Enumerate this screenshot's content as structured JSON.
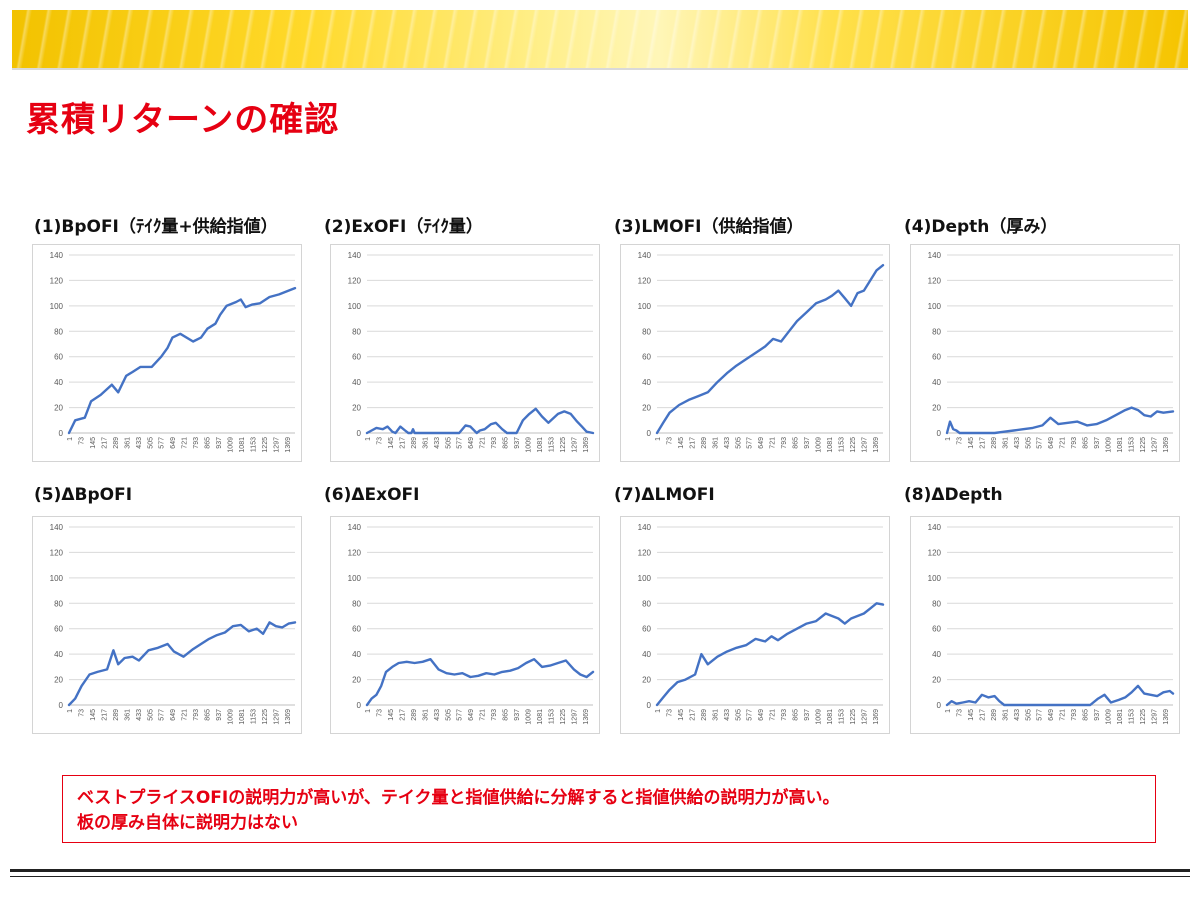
{
  "page": {
    "title": "累積リターンの確認",
    "note_line1": "ベストプライスOFIの説明力が高いが、テイク量と指値供給に分解すると指値供給の説明力が高い。",
    "note_line2": "板の厚み自体に説明力はない"
  },
  "colors": {
    "series": "#4472c4",
    "title": "#e60012",
    "grid": "#d9d9d9"
  },
  "chart_data": [
    {
      "type": "line",
      "title": "(1)BpOFI（ﾃｲｸ量+供給指値）",
      "ylim": [
        0,
        140
      ],
      "yticks": [
        0,
        20,
        40,
        60,
        80,
        100,
        120,
        140
      ],
      "x_ticks": [
        "1",
        "73",
        "145",
        "217",
        "289",
        "361",
        "433",
        "505",
        "577",
        "649",
        "721",
        "793",
        "865",
        "937",
        "1009",
        "1081",
        "1153",
        "1225",
        "1297",
        "1369"
      ],
      "x_range": [
        1,
        1420
      ],
      "series": [
        {
          "x": [
            1,
            40,
            100,
            140,
            200,
            270,
            310,
            360,
            400,
            450,
            520,
            580,
            620,
            650,
            700,
            780,
            830,
            870,
            920,
            950,
            990,
            1050,
            1080,
            1110,
            1150,
            1200,
            1260,
            1320,
            1380,
            1420
          ],
          "values": [
            0,
            10,
            12,
            25,
            30,
            38,
            32,
            45,
            48,
            52,
            52,
            60,
            67,
            75,
            78,
            72,
            75,
            82,
            86,
            93,
            100,
            103,
            105,
            99,
            101,
            102,
            107,
            109,
            112,
            114
          ]
        }
      ]
    },
    {
      "type": "line",
      "title": "(2)ExOFI（ﾃｲｸ量）",
      "ylim": [
        0,
        140
      ],
      "yticks": [
        0,
        20,
        40,
        60,
        80,
        100,
        120,
        140
      ],
      "x_ticks": [
        "1",
        "73",
        "145",
        "217",
        "289",
        "361",
        "433",
        "505",
        "577",
        "649",
        "721",
        "793",
        "865",
        "937",
        "1009",
        "1081",
        "1153",
        "1225",
        "1297",
        "1369"
      ],
      "x_range": [
        1,
        1420
      ],
      "series": [
        {
          "x": [
            1,
            30,
            60,
            100,
            130,
            160,
            180,
            210,
            240,
            260,
            280,
            290,
            300,
            330,
            400,
            580,
            620,
            650,
            690,
            710,
            740,
            780,
            810,
            850,
            880,
            940,
            980,
            1020,
            1060,
            1100,
            1140,
            1200,
            1240,
            1280,
            1320,
            1350,
            1380,
            1420
          ],
          "values": [
            0,
            2,
            4,
            3,
            5,
            1,
            0,
            5,
            2,
            0,
            0,
            3,
            0,
            0,
            0,
            0,
            6,
            5,
            0,
            2,
            3,
            7,
            8,
            3,
            0,
            0,
            10,
            15,
            19,
            13,
            8,
            15,
            17,
            15,
            9,
            5,
            1,
            0
          ]
        }
      ]
    },
    {
      "type": "line",
      "title": "(3)LMOFI（供給指値）",
      "ylim": [
        0,
        140
      ],
      "yticks": [
        0,
        20,
        40,
        60,
        80,
        100,
        120,
        140
      ],
      "x_ticks": [
        "1",
        "73",
        "145",
        "217",
        "289",
        "361",
        "433",
        "505",
        "577",
        "649",
        "721",
        "793",
        "865",
        "937",
        "1009",
        "1081",
        "1153",
        "1225",
        "1297",
        "1369"
      ],
      "x_range": [
        1,
        1420
      ],
      "series": [
        {
          "x": [
            1,
            40,
            80,
            140,
            200,
            260,
            320,
            380,
            440,
            500,
            560,
            620,
            680,
            730,
            780,
            830,
            880,
            940,
            1000,
            1060,
            1100,
            1140,
            1180,
            1220,
            1260,
            1300,
            1340,
            1380,
            1420
          ],
          "values": [
            0,
            8,
            16,
            22,
            26,
            29,
            32,
            40,
            47,
            53,
            58,
            63,
            68,
            74,
            72,
            80,
            88,
            95,
            102,
            105,
            108,
            112,
            106,
            100,
            110,
            112,
            120,
            128,
            132
          ]
        }
      ]
    },
    {
      "type": "line",
      "title": "(4)Depth（厚み）",
      "ylim": [
        0,
        140
      ],
      "yticks": [
        0,
        20,
        40,
        60,
        80,
        100,
        120,
        140
      ],
      "x_ticks": [
        "1",
        "73",
        "145",
        "217",
        "289",
        "361",
        "433",
        "505",
        "577",
        "649",
        "721",
        "793",
        "865",
        "937",
        "1009",
        "1081",
        "1153",
        "1225",
        "1297",
        "1369"
      ],
      "x_range": [
        1,
        1420
      ],
      "series": [
        {
          "x": [
            1,
            20,
            40,
            60,
            80,
            100,
            140,
            300,
            360,
            420,
            480,
            540,
            600,
            650,
            700,
            760,
            820,
            880,
            940,
            1000,
            1060,
            1120,
            1160,
            1200,
            1240,
            1280,
            1320,
            1360,
            1420
          ],
          "values": [
            0,
            9,
            3,
            2,
            0,
            0,
            0,
            0,
            1,
            2,
            3,
            4,
            6,
            12,
            7,
            8,
            9,
            6,
            7,
            10,
            14,
            18,
            20,
            18,
            14,
            13,
            17,
            16,
            17
          ]
        }
      ]
    },
    {
      "type": "line",
      "title": "(5)ΔBpOFI",
      "ylim": [
        0,
        140
      ],
      "yticks": [
        0,
        20,
        40,
        60,
        80,
        100,
        120,
        140
      ],
      "x_ticks": [
        "1",
        "73",
        "145",
        "217",
        "289",
        "361",
        "433",
        "505",
        "577",
        "649",
        "721",
        "793",
        "865",
        "937",
        "1009",
        "1081",
        "1153",
        "1225",
        "1297",
        "1369"
      ],
      "x_range": [
        1,
        1420
      ],
      "series": [
        {
          "x": [
            1,
            40,
            80,
            130,
            180,
            240,
            280,
            310,
            350,
            400,
            440,
            500,
            560,
            620,
            660,
            720,
            780,
            830,
            880,
            930,
            980,
            1030,
            1080,
            1130,
            1180,
            1220,
            1260,
            1300,
            1340,
            1380,
            1420
          ],
          "values": [
            0,
            5,
            15,
            24,
            26,
            28,
            43,
            32,
            37,
            38,
            35,
            43,
            45,
            48,
            42,
            38,
            44,
            48,
            52,
            55,
            57,
            62,
            63,
            58,
            60,
            56,
            65,
            62,
            61,
            64,
            65
          ]
        }
      ]
    },
    {
      "type": "line",
      "title": "(6)ΔExOFI",
      "ylim": [
        0,
        140
      ],
      "yticks": [
        0,
        20,
        40,
        60,
        80,
        100,
        120,
        140
      ],
      "x_ticks": [
        "1",
        "73",
        "145",
        "217",
        "289",
        "361",
        "433",
        "505",
        "577",
        "649",
        "721",
        "793",
        "865",
        "937",
        "1009",
        "1081",
        "1153",
        "1225",
        "1297",
        "1369"
      ],
      "x_range": [
        1,
        1420
      ],
      "series": [
        {
          "x": [
            1,
            30,
            60,
            90,
            120,
            160,
            200,
            250,
            300,
            350,
            400,
            450,
            500,
            550,
            600,
            650,
            700,
            750,
            800,
            850,
            900,
            950,
            1000,
            1050,
            1100,
            1150,
            1200,
            1250,
            1300,
            1340,
            1380,
            1420
          ],
          "values": [
            0,
            5,
            8,
            15,
            26,
            30,
            33,
            34,
            33,
            34,
            36,
            28,
            25,
            24,
            25,
            22,
            23,
            25,
            24,
            26,
            27,
            29,
            33,
            36,
            30,
            31,
            33,
            35,
            28,
            24,
            22,
            26
          ]
        }
      ]
    },
    {
      "type": "line",
      "title": "(7)ΔLMOFI",
      "ylim": [
        0,
        140
      ],
      "yticks": [
        0,
        20,
        40,
        60,
        80,
        100,
        120,
        140
      ],
      "x_ticks": [
        "1",
        "73",
        "145",
        "217",
        "289",
        "361",
        "433",
        "505",
        "577",
        "649",
        "721",
        "793",
        "865",
        "937",
        "1009",
        "1081",
        "1153",
        "1225",
        "1297",
        "1369"
      ],
      "x_range": [
        1,
        1420
      ],
      "series": [
        {
          "x": [
            1,
            40,
            80,
            130,
            180,
            240,
            280,
            320,
            380,
            440,
            500,
            560,
            620,
            680,
            720,
            760,
            820,
            880,
            940,
            1000,
            1060,
            1100,
            1140,
            1180,
            1220,
            1260,
            1300,
            1340,
            1380,
            1420
          ],
          "values": [
            0,
            6,
            12,
            18,
            20,
            24,
            40,
            32,
            38,
            42,
            45,
            47,
            52,
            50,
            54,
            51,
            56,
            60,
            64,
            66,
            72,
            70,
            68,
            64,
            68,
            70,
            72,
            76,
            80,
            79
          ]
        }
      ]
    },
    {
      "type": "line",
      "title": "(8)ΔDepth",
      "ylim": [
        0,
        140
      ],
      "yticks": [
        0,
        20,
        40,
        60,
        80,
        100,
        120,
        140
      ],
      "x_ticks": [
        "1",
        "73",
        "145",
        "217",
        "289",
        "361",
        "433",
        "505",
        "577",
        "649",
        "721",
        "793",
        "865",
        "937",
        "1009",
        "1081",
        "1153",
        "1225",
        "1297",
        "1369"
      ],
      "x_range": [
        1,
        1420
      ],
      "series": [
        {
          "x": [
            1,
            30,
            60,
            100,
            140,
            180,
            220,
            260,
            300,
            330,
            360,
            500,
            700,
            900,
            950,
            990,
            1030,
            1080,
            1120,
            1160,
            1200,
            1240,
            1280,
            1320,
            1360,
            1400,
            1420
          ],
          "values": [
            0,
            3,
            1,
            2,
            3,
            2,
            8,
            6,
            7,
            3,
            0,
            0,
            0,
            0,
            5,
            8,
            2,
            4,
            6,
            10,
            15,
            9,
            8,
            7,
            10,
            11,
            9
          ]
        }
      ]
    }
  ]
}
